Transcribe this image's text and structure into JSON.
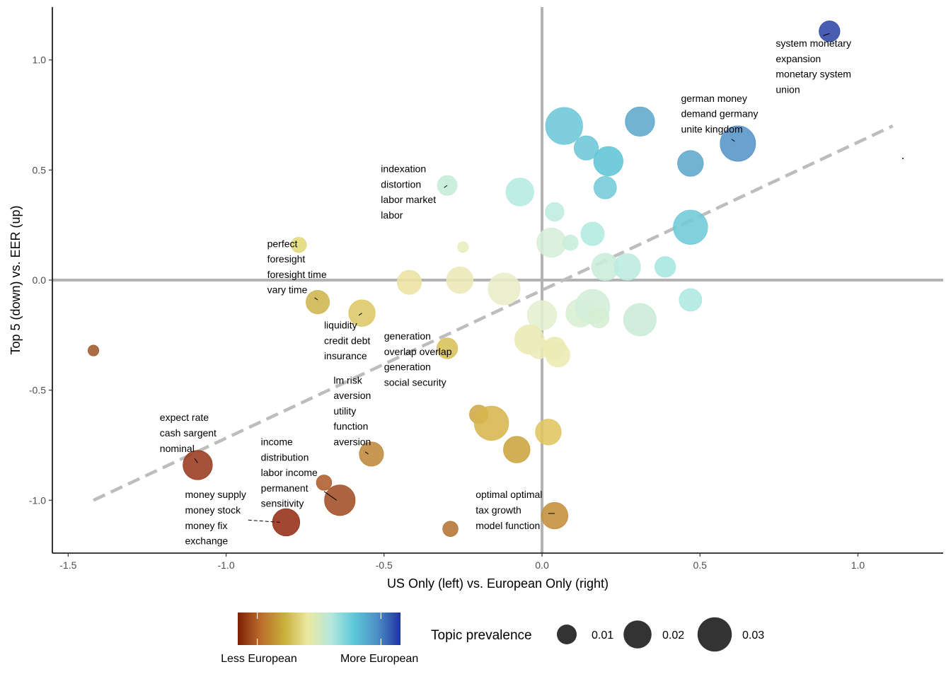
{
  "chart_data": {
    "type": "scatter",
    "title": "",
    "xlabel": "US Only (left) vs. European Only (right)",
    "ylabel": "Top 5 (down) vs. EER (up)",
    "xlim": [
      -1.55,
      1.27
    ],
    "ylim": [
      -1.24,
      1.24
    ],
    "x_ticks": [
      -1.5,
      -1.0,
      -0.5,
      0.0,
      0.5,
      1.0
    ],
    "x_tick_labels": [
      "-1.5",
      "-1.0",
      "-0.5",
      "0.0",
      "0.5",
      "1.0"
    ],
    "y_ticks": [
      -1.0,
      -0.5,
      0.0,
      0.5,
      1.0
    ],
    "y_tick_labels": [
      "-1.0",
      "-0.5",
      "0.0",
      "0.5",
      "1.0"
    ],
    "reference_lines": {
      "x": 0.0,
      "y": 0.0
    },
    "trend_line": {
      "x1": -1.42,
      "y1": -1.0,
      "x2": 1.11,
      "y2": 0.7,
      "style": "dashed"
    },
    "color_scale": {
      "stops": [
        "#7f1f06",
        "#bb6e2c",
        "#c9ae39",
        "#ece9a0",
        "#b6e8dd",
        "#5cc8d8",
        "#4d8fc6",
        "#1e33a0"
      ],
      "low_label": "Less European",
      "high_label": "More European"
    },
    "size_legend": {
      "title": "Topic prevalence",
      "entries": [
        {
          "value": 0.01,
          "label": "0.01"
        },
        {
          "value": 0.02,
          "label": "0.02"
        },
        {
          "value": 0.03,
          "label": "0.03"
        }
      ]
    },
    "points": [
      {
        "x": 0.91,
        "y": 1.13,
        "size": 0.011,
        "color": "#3048a8"
      },
      {
        "x": 0.62,
        "y": 0.62,
        "size": 0.032,
        "color": "#5794c8"
      },
      {
        "x": 0.31,
        "y": 0.72,
        "size": 0.022,
        "color": "#5ea7cc"
      },
      {
        "x": 0.47,
        "y": 0.53,
        "size": 0.017,
        "color": "#5ea7cc"
      },
      {
        "x": 0.07,
        "y": 0.7,
        "size": 0.035,
        "color": "#6dc7d8"
      },
      {
        "x": 0.14,
        "y": 0.6,
        "size": 0.015,
        "color": "#6cc7d8"
      },
      {
        "x": 0.21,
        "y": 0.54,
        "size": 0.022,
        "color": "#5ec5d6"
      },
      {
        "x": 0.2,
        "y": 0.42,
        "size": 0.013,
        "color": "#74cbd9"
      },
      {
        "x": 0.47,
        "y": 0.24,
        "size": 0.03,
        "color": "#6fcad8"
      },
      {
        "x": -0.3,
        "y": 0.43,
        "size": 0.01,
        "color": "#c5ecd8"
      },
      {
        "x": -0.07,
        "y": 0.4,
        "size": 0.02,
        "color": "#b5ebdf"
      },
      {
        "x": 0.04,
        "y": 0.31,
        "size": 0.009,
        "color": "#bdeddf"
      },
      {
        "x": 0.16,
        "y": 0.21,
        "size": 0.014,
        "color": "#b2eadf"
      },
      {
        "x": 0.03,
        "y": 0.17,
        "size": 0.022,
        "color": "#d6efd8"
      },
      {
        "x": 0.09,
        "y": 0.17,
        "size": 0.006,
        "color": "#c8eddb"
      },
      {
        "x": -0.25,
        "y": 0.15,
        "size": 0.003,
        "color": "#eaedbc"
      },
      {
        "x": -0.77,
        "y": 0.16,
        "size": 0.006,
        "color": "#e1d878"
      },
      {
        "x": 0.2,
        "y": 0.06,
        "size": 0.019,
        "color": "#c9eddb"
      },
      {
        "x": 0.27,
        "y": 0.06,
        "size": 0.018,
        "color": "#bcecdf"
      },
      {
        "x": 0.39,
        "y": 0.06,
        "size": 0.011,
        "color": "#a6e7e1"
      },
      {
        "x": -0.42,
        "y": -0.01,
        "size": 0.015,
        "color": "#ece3a2"
      },
      {
        "x": -0.26,
        "y": 0.0,
        "size": 0.018,
        "color": "#ece8b7"
      },
      {
        "x": -0.12,
        "y": -0.04,
        "size": 0.026,
        "color": "#eaeec7"
      },
      {
        "x": -0.71,
        "y": -0.1,
        "size": 0.014,
        "color": "#cdb54f"
      },
      {
        "x": -0.57,
        "y": -0.15,
        "size": 0.018,
        "color": "#dcc865"
      },
      {
        "x": 0.0,
        "y": -0.16,
        "size": 0.022,
        "color": "#e2efcf"
      },
      {
        "x": 0.12,
        "y": -0.15,
        "size": 0.02,
        "color": "#d8efd3"
      },
      {
        "x": 0.16,
        "y": -0.12,
        "size": 0.03,
        "color": "#d1eed8"
      },
      {
        "x": 0.18,
        "y": -0.17,
        "size": 0.011,
        "color": "#d5eed4"
      },
      {
        "x": 0.31,
        "y": -0.18,
        "size": 0.027,
        "color": "#c9ecd6"
      },
      {
        "x": 0.47,
        "y": -0.09,
        "size": 0.013,
        "color": "#aee8df"
      },
      {
        "x": -0.04,
        "y": -0.27,
        "size": 0.022,
        "color": "#eaeab2"
      },
      {
        "x": -0.01,
        "y": -0.31,
        "size": 0.011,
        "color": "#ebecba"
      },
      {
        "x": 0.04,
        "y": -0.31,
        "size": 0.013,
        "color": "#ecebb0"
      },
      {
        "x": 0.05,
        "y": -0.34,
        "size": 0.015,
        "color": "#ecebb4"
      },
      {
        "x": -0.3,
        "y": -0.31,
        "size": 0.011,
        "color": "#d8c05a"
      },
      {
        "x": -0.2,
        "y": -0.61,
        "size": 0.009,
        "color": "#cea945"
      },
      {
        "x": -0.16,
        "y": -0.65,
        "size": 0.03,
        "color": "#d7b64f"
      },
      {
        "x": 0.02,
        "y": -0.69,
        "size": 0.017,
        "color": "#dfc55f"
      },
      {
        "x": -0.08,
        "y": -0.77,
        "size": 0.018,
        "color": "#c9a43d"
      },
      {
        "x": -0.54,
        "y": -0.79,
        "size": 0.015,
        "color": "#bf8a3c"
      },
      {
        "x": -1.09,
        "y": -0.84,
        "size": 0.022,
        "color": "#973a1e"
      },
      {
        "x": -0.69,
        "y": -0.92,
        "size": 0.006,
        "color": "#ae5d2a"
      },
      {
        "x": -0.64,
        "y": -1.0,
        "size": 0.024,
        "color": "#a24d24"
      },
      {
        "x": -0.81,
        "y": -1.1,
        "size": 0.019,
        "color": "#972e16"
      },
      {
        "x": -0.29,
        "y": -1.13,
        "size": 0.006,
        "color": "#b57533"
      },
      {
        "x": 0.04,
        "y": -1.07,
        "size": 0.018,
        "color": "#c38f3b"
      },
      {
        "x": -1.42,
        "y": -0.32,
        "size": 0.003,
        "color": "#a05a2c"
      }
    ],
    "annotations": [
      {
        "lines": [
          "system monetary",
          "expansion",
          "monetary system",
          "union"
        ],
        "x": 0.74,
        "y": 1.06,
        "leader": [
          0.89,
          1.11,
          0.91,
          1.12
        ]
      },
      {
        "lines": [
          "german money",
          "demand germany",
          "unite kingdom"
        ],
        "x": 0.44,
        "y": 0.81,
        "leader": [
          0.6,
          0.64,
          0.61,
          0.63
        ]
      },
      {
        "lines": [
          "indexation",
          "distortion",
          "labor market",
          "labor"
        ],
        "x": -0.51,
        "y": 0.49,
        "leader": [
          -0.31,
          0.42,
          -0.3,
          0.43
        ]
      },
      {
        "lines": [
          "perfect",
          "foresight",
          "foresight time",
          "vary time"
        ],
        "x": -0.87,
        "y": 0.15,
        "leader": [
          -0.72,
          -0.08,
          -0.71,
          -0.09
        ]
      },
      {
        "lines": [
          "liquidity",
          "credit debt",
          "insurance"
        ],
        "x": -0.69,
        "y": -0.22,
        "leader": [
          -0.58,
          -0.16,
          -0.57,
          -0.15
        ]
      },
      {
        "lines": [
          "generation",
          "overlap overlap",
          "generation",
          "social security"
        ],
        "x": -0.5,
        "y": -0.27,
        "leader": null
      },
      {
        "lines": [
          "lm risk",
          "aversion",
          "utility",
          "function",
          "aversion"
        ],
        "x": -0.66,
        "y": -0.47,
        "leader": [
          -0.56,
          -0.78,
          -0.55,
          -0.79
        ]
      },
      {
        "lines": [
          "expect rate",
          "cash sargent",
          "nominal"
        ],
        "x": -1.21,
        "y": -0.64,
        "leader": [
          -1.1,
          -0.81,
          -1.09,
          -0.83
        ]
      },
      {
        "lines": [
          "income",
          "distribution",
          "labor income",
          "permanent",
          "sensitivity"
        ],
        "x": -0.89,
        "y": -0.75,
        "leader": [
          -0.69,
          -0.96,
          -0.65,
          -1.0
        ]
      },
      {
        "lines": [
          "money supply",
          "money stock",
          "money fix",
          "exchange"
        ],
        "x": -1.13,
        "y": -0.99,
        "leader": [
          -0.93,
          -1.09,
          -0.83,
          -1.1
        ]
      },
      {
        "lines": [
          "optimal optimal",
          "tax growth",
          "model function"
        ],
        "x": -0.21,
        "y": -0.99,
        "leader": [
          0.02,
          -1.06,
          0.04,
          -1.06
        ]
      }
    ],
    "grid": false,
    "legend_position": "bottom"
  }
}
